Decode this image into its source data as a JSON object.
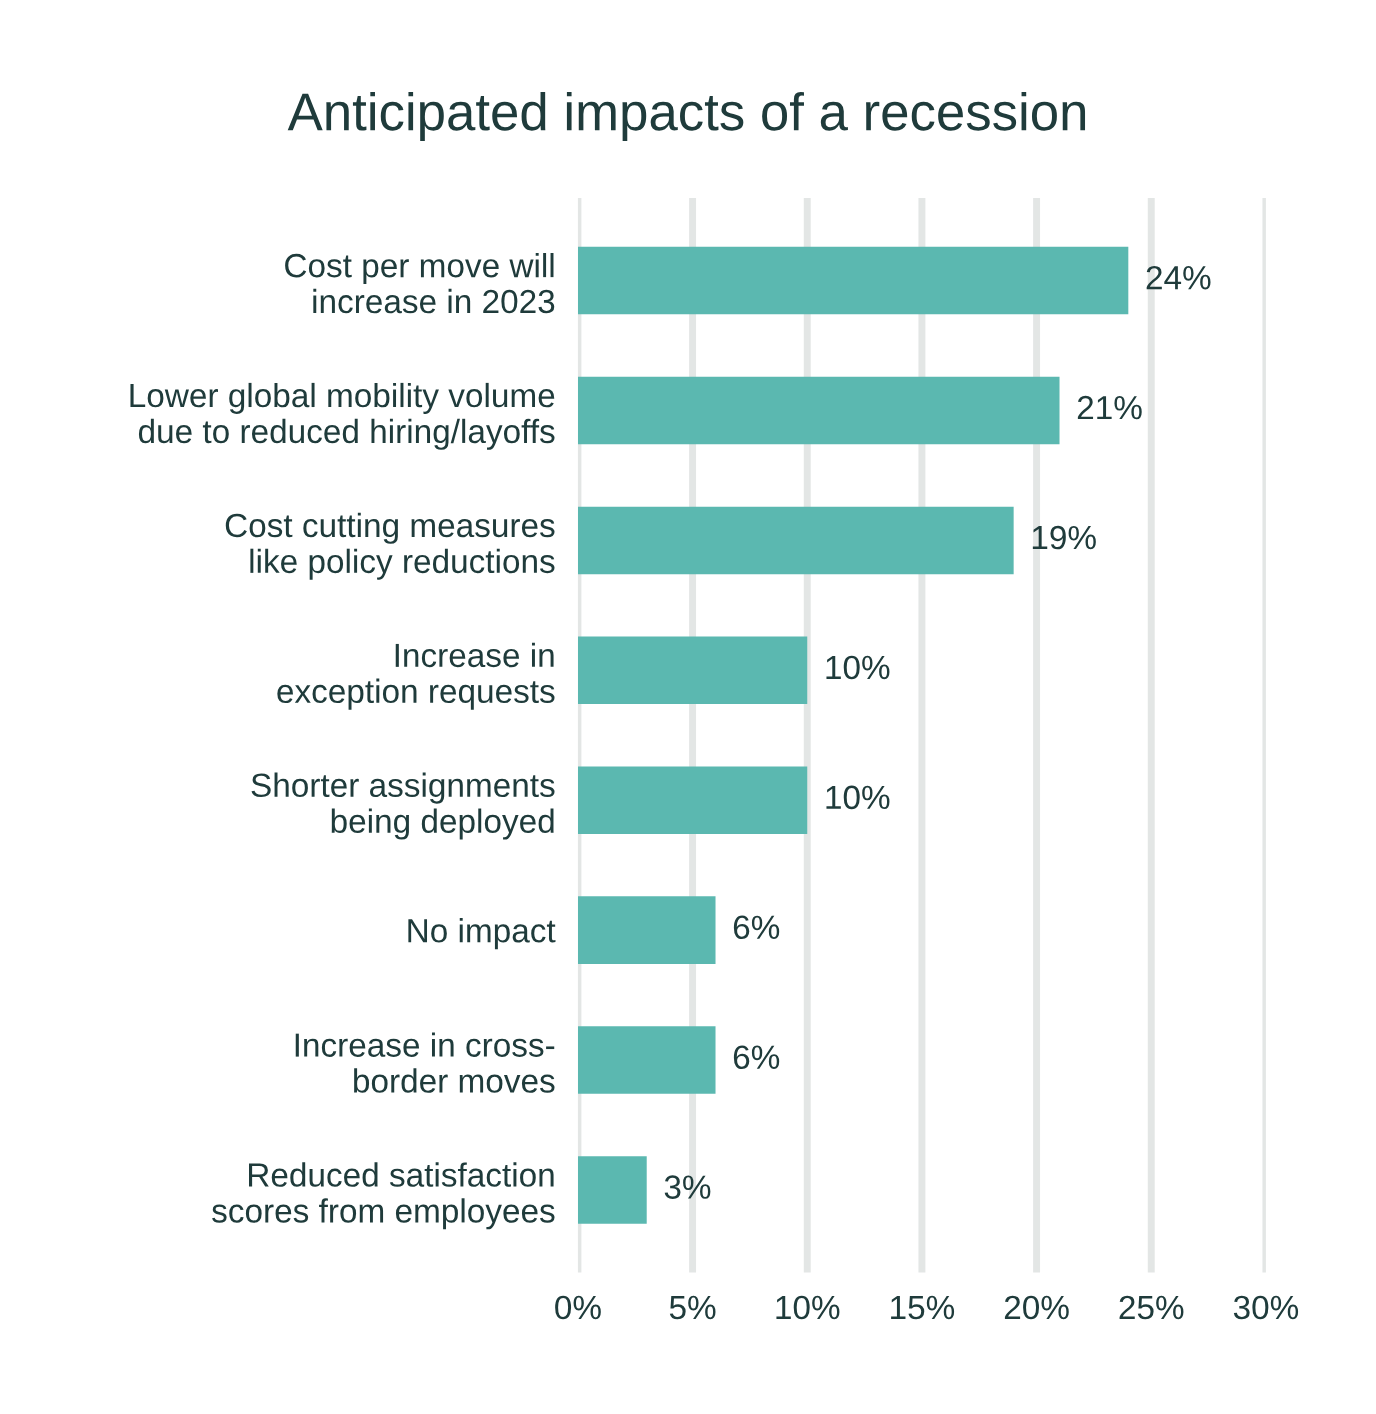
{
  "chart_data": {
    "type": "bar",
    "orientation": "horizontal",
    "title": "Anticipated impacts of a recession",
    "categories": [
      "Cost per move will\nincrease in 2023",
      "Lower global mobility volume\ndue to reduced hiring/layoffs",
      "Cost cutting measures\nlike policy reductions",
      "Increase in\nexception requests",
      "Shorter assignments\nbeing deployed",
      "No impact",
      "Increase in cross-\nborder moves",
      "Reduced satisfaction\nscores from employees"
    ],
    "values": [
      24,
      21,
      19,
      10,
      10,
      6,
      6,
      3
    ],
    "value_labels": [
      "24%",
      "21%",
      "19%",
      "10%",
      "10%",
      "6%",
      "6%",
      "3%"
    ],
    "color": "#5bb8b0",
    "xlim": [
      0,
      30
    ],
    "xticks": [
      {
        "value": 0,
        "label": "0%"
      },
      {
        "value": 5,
        "label": "5%"
      },
      {
        "value": 10,
        "label": "10%"
      },
      {
        "value": 15,
        "label": "15%"
      },
      {
        "value": 20,
        "label": "20%"
      },
      {
        "value": 25,
        "label": "25%"
      },
      {
        "value": 30,
        "label": "30%"
      }
    ],
    "grid": "x"
  }
}
